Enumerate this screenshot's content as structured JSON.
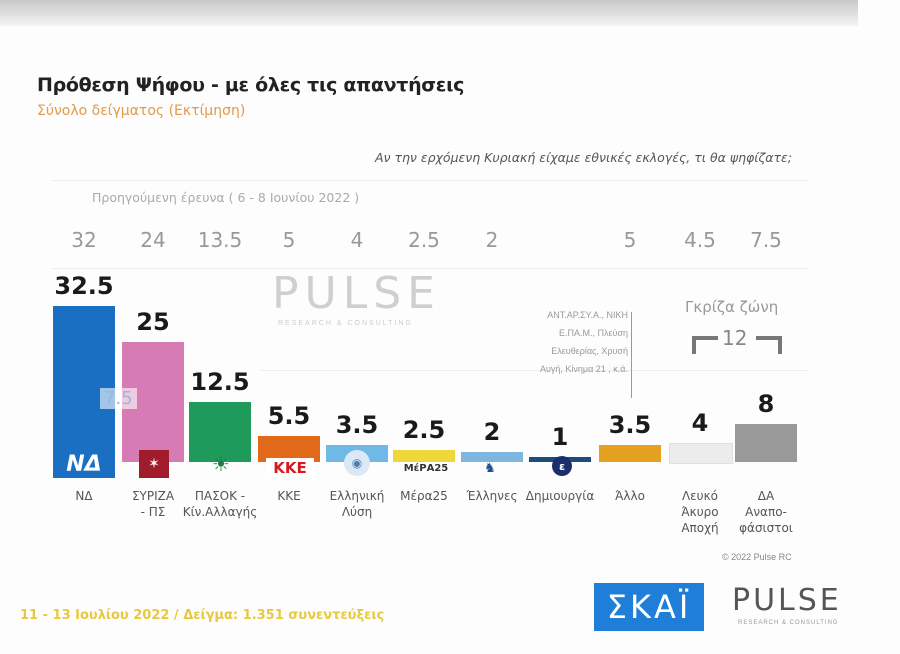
{
  "header": {
    "title": "Πρόθεση Ψήφου - με όλες τις απαντήσεις",
    "subtitle": "Σύνολο δείγματος   (Εκτίμηση)",
    "question": "Αν την ερχόμενη Κυριακή είχαμε εθνικές εκλογές, τι θα ψηφίζατε;",
    "previous_survey": "Προηγούμενη έρευνα  ( 6 - 8 Ιουνίου  2022 )"
  },
  "watermark": {
    "main": "PULSE",
    "sub": "RESEARCH & CONSULTING"
  },
  "other_note": [
    "ΑΝΤ.ΑΡ.ΣΥ.Α., ΝΙΚΗ",
    "Ε.ΠΑ.Μ., Πλεύση",
    "Ελευθερίας, Χρυσή",
    "Αυγή, Κίνημα 21 , κ.ά."
  ],
  "grey_zone": {
    "title": "Γκρίζα ζώνη",
    "value": "12"
  },
  "nd_gap": "7.5",
  "footer": {
    "text": "11 - 13 Ιουλίου  2022  /  Δείγμα:  1.351 συνεντεύξεις",
    "copyright": "© 2022 Pulse RC",
    "skai_logo": "ΣΚΑΪ",
    "pulse_logo": "PULSE",
    "pulse_sub": "RESEARCH & CONSULTING"
  },
  "chart_data": {
    "type": "bar",
    "title": "Πρόθεση Ψήφου - με όλες τις απαντήσεις",
    "subtitle": "Σύνολο δείγματος (Εκτίμηση)",
    "categories": [
      "ΝΔ",
      "ΣΥΡΙΖΑ - ΠΣ",
      "ΠΑΣΟΚ - Κίν.Αλλαγής",
      "ΚΚΕ",
      "Ελληνική Λύση",
      "Μέρα25",
      "Έλληνες",
      "Δημιουργία",
      "Άλλο",
      "Λευκό Άκυρο Αποχή",
      "ΔΑ Αναποφάσιστοι"
    ],
    "series": [
      {
        "name": "11-13 Ιουλίου 2022",
        "values": [
          32.5,
          25,
          12.5,
          5.5,
          3.5,
          2.5,
          2,
          1,
          3.5,
          4,
          8
        ]
      },
      {
        "name": "Προηγούμενη έρευνα (6-8 Ιουνίου 2022)",
        "values": [
          32,
          24,
          13.5,
          5,
          4,
          2.5,
          2,
          null,
          5,
          4.5,
          7.5
        ]
      }
    ],
    "value_labels": [
      "32.5",
      "25",
      "12.5",
      "5.5",
      "3.5",
      "2.5",
      "2",
      "1",
      "3.5",
      "4",
      "8"
    ],
    "prev_labels": [
      "32",
      "24",
      "13.5",
      "5",
      "4",
      "2.5",
      "2",
      "",
      "5",
      "4.5",
      "7.5"
    ],
    "colors": [
      "#1b6fc2",
      "#d77bb5",
      "#1e9a5a",
      "#e06a1a",
      "#6fb9e6",
      "#f0d83a",
      "#7fb6e0",
      "#1c4d7a",
      "#e6a020",
      "#ececec",
      "#999999"
    ],
    "cat_lines": [
      [
        "ΝΔ"
      ],
      [
        "ΣΥΡΙΖΑ",
        "- ΠΣ"
      ],
      [
        "ΠΑΣΟΚ -",
        "Κίν.Αλλαγής"
      ],
      [
        "ΚΚΕ"
      ],
      [
        "Ελληνική",
        "Λύση"
      ],
      [
        "Μέρα25"
      ],
      [
        "Έλληνες"
      ],
      [
        "Δημιουργία"
      ],
      [
        "Άλλο"
      ],
      [
        "Λευκό",
        "Άκυρο",
        "Αποχή"
      ],
      [
        "ΔΑ",
        "Αναπο-",
        "φάσιστοι"
      ]
    ],
    "xlabel": "",
    "ylabel": "",
    "grid": true,
    "legend": "none"
  }
}
